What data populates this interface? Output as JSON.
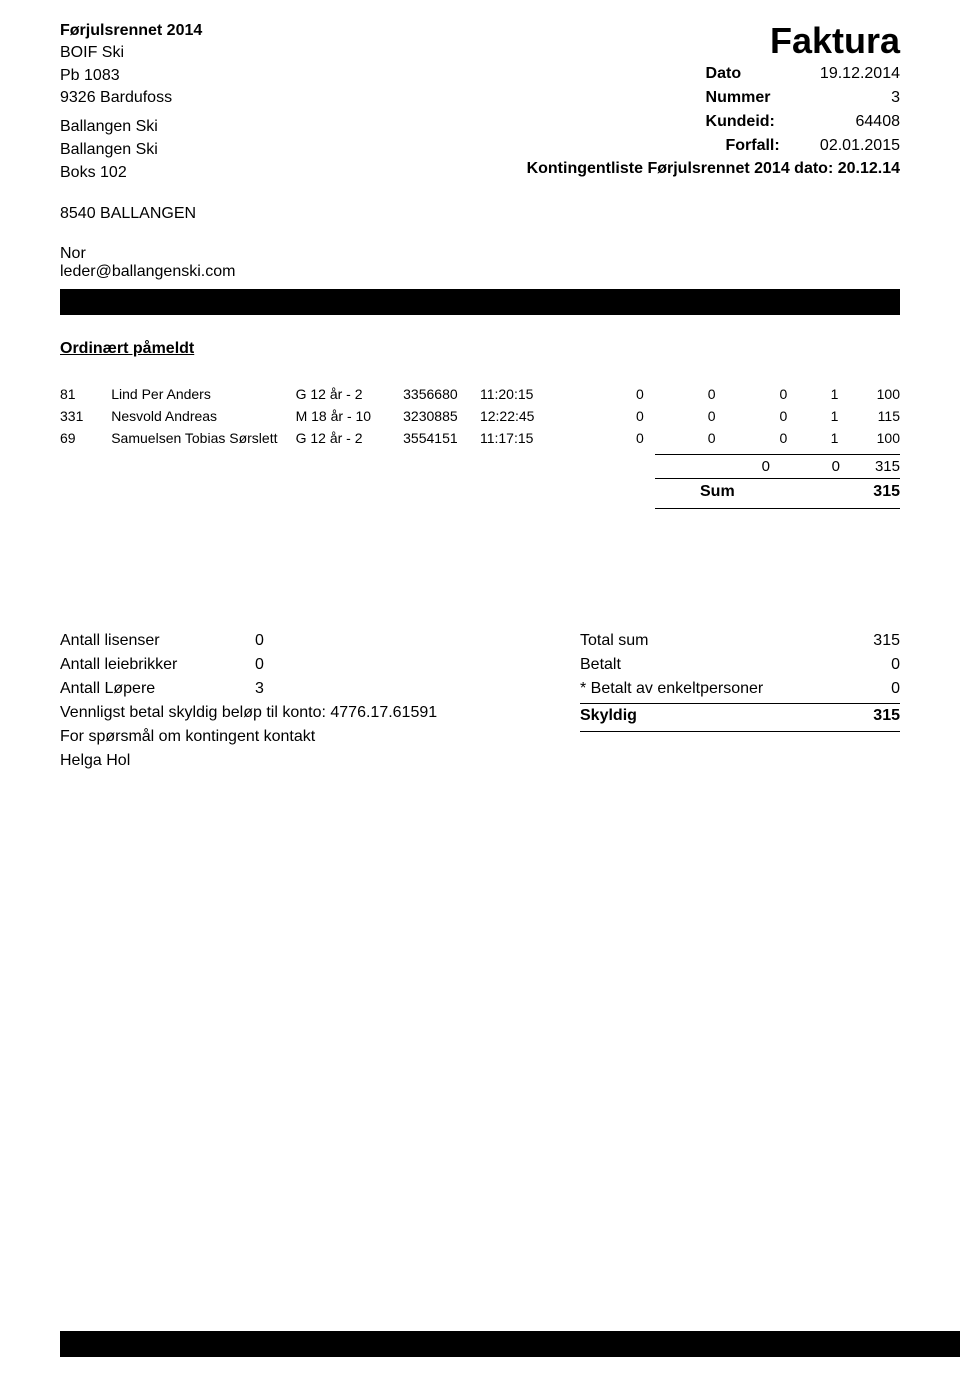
{
  "sender": {
    "event_title": "Førjulsrennet 2014",
    "org": "BOIF Ski",
    "po_box": "Pb 1083",
    "postal": "9326 Bardufoss"
  },
  "invoice_title": "Faktura",
  "meta": {
    "dato_label": "Dato",
    "dato_value": "19.12.2014",
    "nummer_label": "Nummer",
    "nummer_value": "3",
    "kundeid_label": "Kundeid:",
    "kundeid_value": "64408",
    "forfall_label": "Forfall:",
    "forfall_value": "02.01.2015"
  },
  "recipient": {
    "line1": "Ballangen Ski",
    "line2": "Ballangen Ski",
    "line3": "Boks 102",
    "line4": "8540  BALLANGEN"
  },
  "kontingent_line": "Kontingentliste  Førjulsrennet 2014 dato: 20.12.14",
  "contact": {
    "country": "Nor",
    "email": "leder@ballangenski.com"
  },
  "section_title": "Ordinært påmeldt",
  "rows": [
    {
      "id": "81",
      "name": "Lind  Per Anders",
      "cat": "G 12 år - 2",
      "num": "3356680",
      "time": "11:20:15",
      "v1": "0",
      "v2": "0",
      "v3": "0",
      "v4": "1",
      "v5": "100"
    },
    {
      "id": "331",
      "name": "Nesvold  Andreas",
      "cat": "M 18 år - 10",
      "num": "3230885",
      "time": "12:22:45",
      "v1": "0",
      "v2": "0",
      "v3": "0",
      "v4": "1",
      "v5": "115"
    },
    {
      "id": "69",
      "name": "Samuelsen  Tobias Sørslett",
      "cat": "G 12 år - 2",
      "num": "3554151",
      "time": "11:17:15",
      "v1": "0",
      "v2": "0",
      "v3": "0",
      "v4": "1",
      "v5": "100"
    }
  ],
  "subtotal": {
    "a": "0",
    "b": "0",
    "c": "315"
  },
  "sum": {
    "label": "Sum",
    "value": "315"
  },
  "footer_left": {
    "lisenser_label": "Antall lisenser",
    "lisenser_val": "0",
    "leiebrikker_label": "Antall leiebrikker",
    "leiebrikker_val": "0",
    "lopere_label": "Antall Løpere",
    "lopere_val": "3",
    "payment_line": "Vennligst betal skyldig beløp til konto: 4776.17.61591",
    "question_line": "For spørsmål om kontingent kontakt",
    "contact_name": "Helga Hol"
  },
  "footer_right": {
    "total_label": "Total sum",
    "total_val": "315",
    "betalt_label": "Betalt",
    "betalt_val": "0",
    "enkelt_label": "* Betalt av enkeltpersoner",
    "enkelt_val": "0",
    "skyldig_label": "Skyldig",
    "skyldig_val": "315"
  }
}
